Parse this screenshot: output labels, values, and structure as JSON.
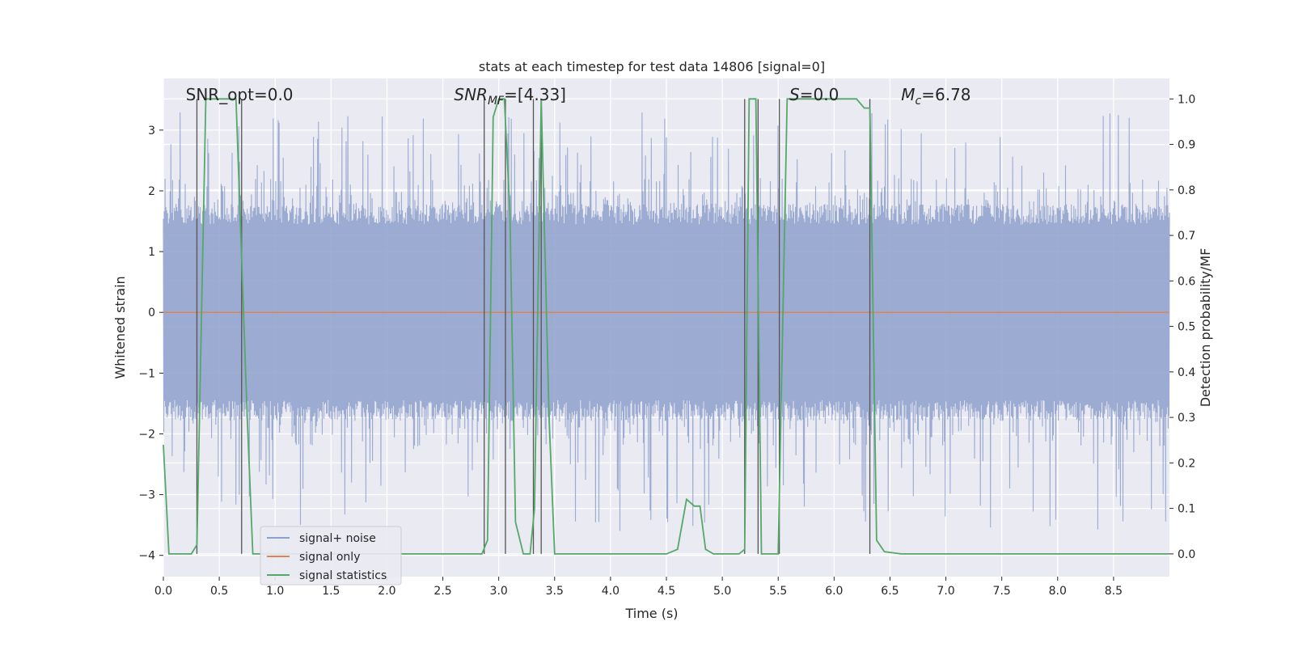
{
  "chart_data": {
    "type": "line",
    "title": "stats at each timestep for test data 14806 [signal=0]",
    "xlabel": "Time (s)",
    "ylabel_left": "Whitened strain",
    "ylabel_right": "Detection probability/MF",
    "xlim": [
      0,
      9.0
    ],
    "ylim_left": [
      -4.35,
      3.85
    ],
    "ylim_right": [
      -0.05,
      1.045
    ],
    "x_ticks": [
      0.0,
      0.5,
      1.0,
      1.5,
      2.0,
      2.5,
      3.0,
      3.5,
      4.0,
      4.5,
      5.0,
      5.5,
      6.0,
      6.5,
      7.0,
      7.5,
      8.0,
      8.5
    ],
    "x_tick_labels": [
      "0.0",
      "0.5",
      "1.0",
      "1.5",
      "2.0",
      "2.5",
      "3.0",
      "3.5",
      "4.0",
      "4.5",
      "5.0",
      "5.5",
      "6.0",
      "6.5",
      "7.0",
      "7.5",
      "8.0",
      "8.5"
    ],
    "y_left_ticks": [
      -4,
      -3,
      -2,
      -1,
      0,
      1,
      2,
      3
    ],
    "y_left_tick_labels": [
      "−4",
      "−3",
      "−2",
      "−1",
      "0",
      "1",
      "2",
      "3"
    ],
    "y_right_ticks": [
      0.0,
      0.1,
      0.2,
      0.3,
      0.4,
      0.5,
      0.6,
      0.7,
      0.8,
      0.9,
      1.0
    ],
    "y_right_tick_labels": [
      "0.0",
      "0.1",
      "0.2",
      "0.3",
      "0.4",
      "0.5",
      "0.6",
      "0.7",
      "0.8",
      "0.9",
      "1.0"
    ],
    "grid": true,
    "legend_position": "lower-left",
    "annotations": [
      {
        "text": "SNR_opt=0.0",
        "x": 0.2
      },
      {
        "text": "SNR",
        "sub": "MF",
        "suffix": "=[4.33]",
        "x": 2.6,
        "italic": true
      },
      {
        "text": "S",
        "suffix": "=0.0",
        "x": 5.6,
        "italic": true
      },
      {
        "text": "M",
        "sub": "c",
        "suffix": "=6.78",
        "x": 6.6,
        "italic": true
      }
    ],
    "series": [
      {
        "name": "signal+ noise",
        "color": "#8da0cb",
        "axis": "left",
        "kind": "noise",
        "x_range": [
          0,
          9.0
        ],
        "envelope": {
          "typical_max": 1.7,
          "typical_min": -1.7,
          "peak_max": 3.3,
          "peak_min": -3.6
        }
      },
      {
        "name": "signal only",
        "color": "#dd8452",
        "axis": "left",
        "x": [
          0,
          9.0
        ],
        "y": [
          0,
          0
        ]
      },
      {
        "name": "signal statistics",
        "color": "#55a868",
        "axis": "right",
        "x": [
          0.0,
          0.05,
          0.25,
          0.3,
          0.38,
          0.45,
          0.65,
          0.75,
          0.8,
          1.0,
          2.0,
          2.3,
          2.85,
          2.9,
          2.95,
          3.0,
          3.05,
          3.1,
          3.15,
          3.22,
          3.28,
          3.32,
          3.38,
          3.45,
          3.5,
          4.0,
          4.5,
          4.6,
          4.68,
          4.75,
          4.8,
          4.85,
          4.92,
          5.0,
          5.15,
          5.2,
          5.24,
          5.3,
          5.35,
          5.42,
          5.5,
          5.58,
          5.7,
          6.2,
          6.27,
          6.32,
          6.38,
          6.45,
          6.6,
          7.0,
          9.0
        ],
        "y": [
          0.24,
          0.0,
          0.0,
          0.02,
          1.0,
          1.0,
          1.0,
          0.3,
          0.0,
          0.0,
          0.0,
          0.0,
          0.0,
          0.03,
          0.96,
          1.0,
          1.0,
          0.75,
          0.07,
          0.0,
          0.0,
          0.1,
          1.0,
          0.3,
          0.0,
          0.0,
          0.0,
          0.01,
          0.12,
          0.105,
          0.105,
          0.01,
          0.0,
          0.0,
          0.0,
          0.01,
          1.0,
          1.0,
          0.0,
          0.0,
          0.0,
          1.0,
          1.0,
          1.0,
          0.98,
          0.98,
          0.03,
          0.005,
          0.0,
          0.0,
          0.0
        ]
      }
    ],
    "vlines_x": [
      0.3,
      0.7,
      2.87,
      3.06,
      3.31,
      3.38,
      5.2,
      5.32,
      5.51,
      6.32
    ]
  }
}
